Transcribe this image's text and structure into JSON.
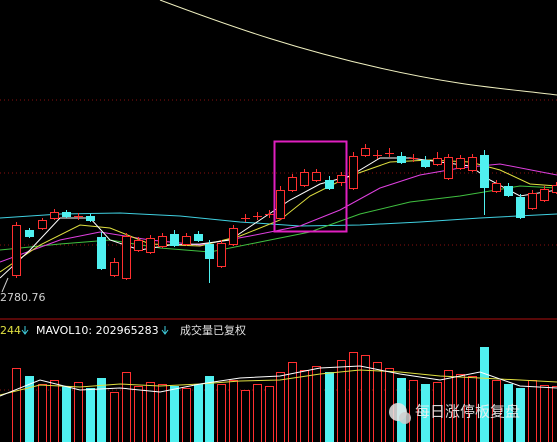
{
  "price_label": "2780.76",
  "indicator": {
    "ma_value": "244",
    "mavol_label": "MAVOL10: 202965283",
    "note": "成交量已复权"
  },
  "watermark": "每日涨停板复盘"
}
